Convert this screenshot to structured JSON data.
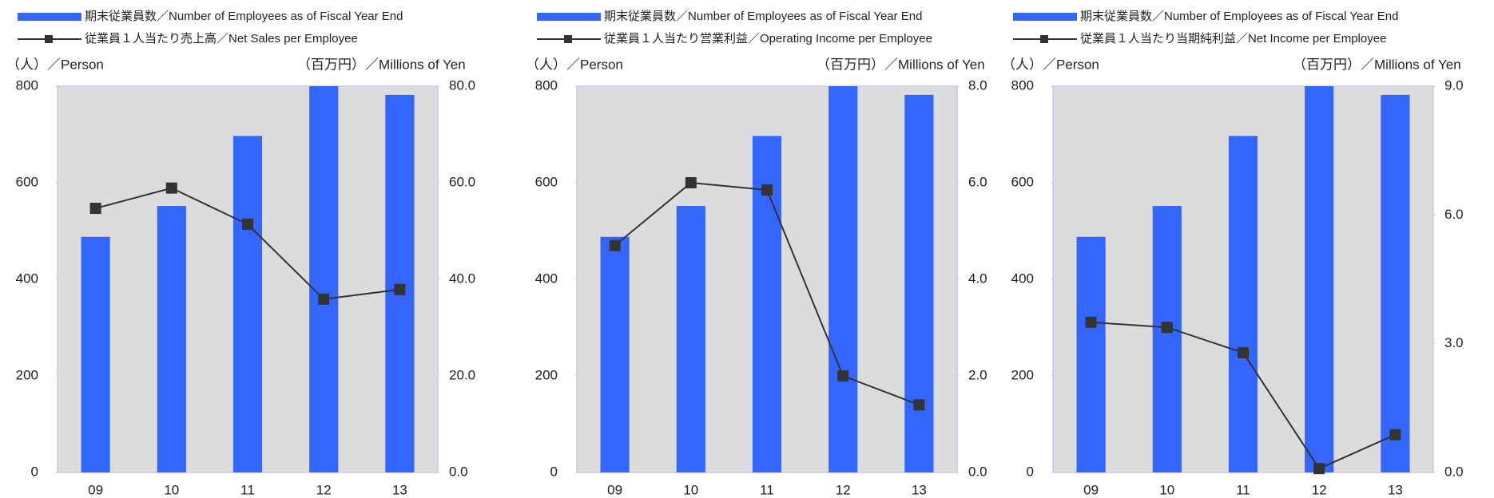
{
  "chart_data": [
    {
      "type": "bar-line",
      "categories": [
        "09",
        "10",
        "11",
        "12",
        "13"
      ],
      "ylabel": "（人）／Person",
      "y2label": "（百万円）／Millions of Yen",
      "ylim": [
        0,
        800
      ],
      "yticks": [
        0,
        200,
        400,
        600,
        800
      ],
      "y2lim": [
        0,
        80
      ],
      "y2ticks": [
        {
          "value": 0,
          "label": "0.0"
        },
        {
          "value": 20,
          "label": "20.0"
        },
        {
          "value": 40,
          "label": "40.0"
        },
        {
          "value": 60,
          "label": "60.0"
        },
        {
          "value": 80,
          "label": "80.0"
        }
      ],
      "series": [
        {
          "name": "期末従業員数／Number of Employees as of  Fiscal Year End",
          "color": "#3366ff",
          "kind": "bar",
          "values": [
            488,
            552,
            697,
            800,
            782
          ]
        },
        {
          "name": "従業員１人当たり売上高／Net Sales per Employee",
          "color": "#333333",
          "kind": "line",
          "axis": "y2",
          "values": [
            54.7,
            58.9,
            51.4,
            35.9,
            37.9
          ]
        }
      ]
    },
    {
      "type": "bar-line",
      "categories": [
        "09",
        "10",
        "11",
        "12",
        "13"
      ],
      "ylabel": "（人）／Person",
      "y2label": "（百万円）／Millions of Yen",
      "ylim": [
        0,
        800
      ],
      "yticks": [
        0,
        200,
        400,
        600,
        800
      ],
      "y2lim": [
        0,
        8
      ],
      "y2ticks": [
        {
          "value": 0,
          "label": "0.0"
        },
        {
          "value": 2,
          "label": "2.0"
        },
        {
          "value": 4,
          "label": "4.0"
        },
        {
          "value": 6,
          "label": "6.0"
        },
        {
          "value": 8,
          "label": "8.0"
        }
      ],
      "series": [
        {
          "name": "期末従業員数／Number of Employees as of  Fiscal Year End",
          "color": "#3366ff",
          "kind": "bar",
          "values": [
            488,
            552,
            697,
            800,
            782
          ]
        },
        {
          "name": "従業員１人当たり営業利益／Operating Income per Employee",
          "color": "#333333",
          "kind": "line",
          "axis": "y2",
          "values": [
            4.7,
            6.0,
            5.85,
            2.0,
            1.4
          ]
        }
      ]
    },
    {
      "type": "bar-line",
      "categories": [
        "09",
        "10",
        "11",
        "12",
        "13"
      ],
      "ylabel": "（人）／Person",
      "y2label": "（百万円）／Millions of Yen",
      "ylim": [
        0,
        800
      ],
      "yticks": [
        0,
        200,
        400,
        600,
        800
      ],
      "y2lim": [
        0,
        9
      ],
      "y2ticks": [
        {
          "value": 0,
          "label": "0.0"
        },
        {
          "value": 3,
          "label": "3.0"
        },
        {
          "value": 6,
          "label": "6.0"
        },
        {
          "value": 9,
          "label": "9.0"
        }
      ],
      "series": [
        {
          "name": "期末従業員数／Number of Employees as of  Fiscal Year End",
          "color": "#3366ff",
          "kind": "bar",
          "values": [
            488,
            552,
            697,
            800,
            782
          ]
        },
        {
          "name": "従業員１人当たり当期純利益／Net Income per Employee",
          "color": "#333333",
          "kind": "line",
          "axis": "y2",
          "values": [
            3.5,
            3.38,
            2.79,
            0.09,
            0.88
          ]
        }
      ]
    }
  ]
}
